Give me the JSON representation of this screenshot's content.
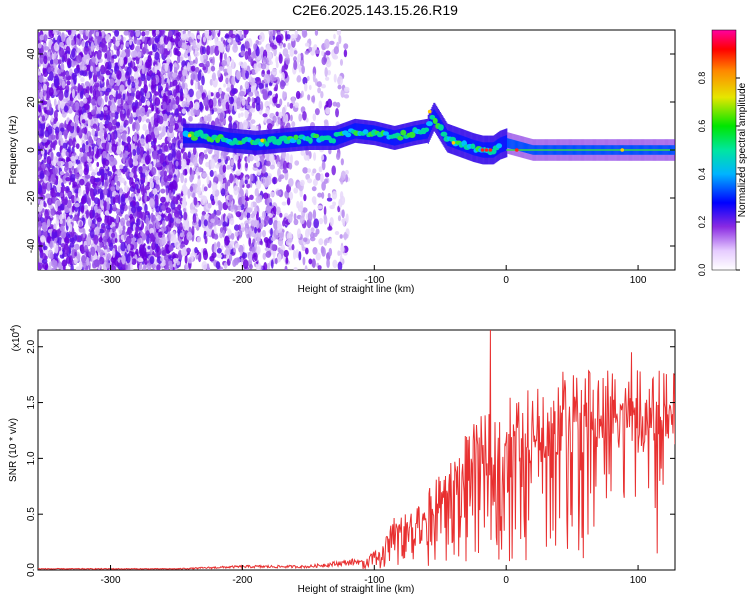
{
  "title": "C2E6.2025.143.15.26.R19",
  "chart_data": [
    {
      "type": "heatmap",
      "xlabel": "Height of straight line (km)",
      "ylabel": "Frequency (Hz)",
      "xlim": [
        -355,
        128
      ],
      "ylim": [
        -50,
        50
      ],
      "x_ticks": [
        -300,
        -200,
        -100,
        0,
        100
      ],
      "x_tick_labels": [
        "-300",
        "-200",
        "-100",
        "0",
        "100"
      ],
      "y_ticks": [
        -40,
        -20,
        0,
        20,
        40
      ],
      "y_tick_labels": [
        "-40",
        "-20",
        "0",
        "20",
        "40"
      ],
      "colorbar": {
        "label": "Normalized spectral amplitude",
        "range": [
          0,
          1
        ],
        "ticks": [
          0.0,
          0.2,
          0.4,
          0.6,
          0.8
        ],
        "tick_labels": [
          "0.0",
          "0.2",
          "0.4",
          "0.6",
          "0.8"
        ],
        "colors": [
          "#ffffff",
          "#c9a8ef",
          "#7a1fe0",
          "#0000ff",
          "#00b4ff",
          "#00e6a0",
          "#00e600",
          "#e6e600",
          "#ff8800",
          "#ff0000",
          "#ff00a0"
        ]
      },
      "ridge": {
        "x": [
          -245,
          -230,
          -210,
          -190,
          -170,
          -150,
          -130,
          -115,
          -100,
          -85,
          -70,
          -60,
          -55,
          -45,
          -35,
          -25,
          -18,
          -10,
          -5,
          0,
          20,
          50,
          85,
          128
        ],
        "y": [
          6,
          6,
          4,
          3,
          4,
          5,
          5,
          8,
          7,
          5,
          7,
          8,
          14,
          5,
          3,
          1,
          0,
          0,
          2,
          3,
          0,
          0,
          0,
          0
        ]
      },
      "regions": [
        {
          "from": -355,
          "to": -245,
          "intensity": 0.25,
          "kind": "broadband-noise"
        },
        {
          "from": -245,
          "to": -165,
          "intensity": 0.15,
          "kind": "broadband-noise"
        },
        {
          "from": -165,
          "to": -120,
          "intensity": 0.06,
          "kind": "broadband-noise"
        }
      ]
    },
    {
      "type": "line",
      "xlabel": "Height of straight line (km)",
      "ylabel": "SNR (10 * v/v)",
      "y_multiplier": "(x10^4)",
      "xlim": [
        -355,
        128
      ],
      "ylim": [
        0,
        2.15
      ],
      "x_ticks": [
        -300,
        -200,
        -100,
        0,
        100
      ],
      "x_tick_labels": [
        "-300",
        "-200",
        "-100",
        "0",
        "100"
      ],
      "y_ticks": [
        0.0,
        0.5,
        1.0,
        1.5,
        2.0
      ],
      "y_tick_labels": [
        "0.0",
        "0.5",
        "1.0",
        "1.5",
        "2.0"
      ],
      "color": "#e83030",
      "envelope": {
        "x": [
          -355,
          -250,
          -200,
          -150,
          -110,
          -95,
          -85,
          -70,
          -55,
          -40,
          -30,
          -20,
          -12,
          -5,
          0,
          10,
          25,
          40,
          60,
          80,
          90,
          100,
          128
        ],
        "y": [
          0.01,
          0.01,
          0.03,
          0.03,
          0.08,
          0.2,
          0.45,
          0.5,
          0.75,
          0.95,
          1.2,
          1.3,
          1.4,
          1.45,
          1.5,
          1.55,
          1.6,
          1.7,
          1.7,
          1.75,
          1.85,
          1.7,
          1.7
        ]
      },
      "spikes": [
        {
          "x": -12,
          "y": 2.15
        },
        {
          "x": 95,
          "y": 1.95
        }
      ]
    }
  ]
}
